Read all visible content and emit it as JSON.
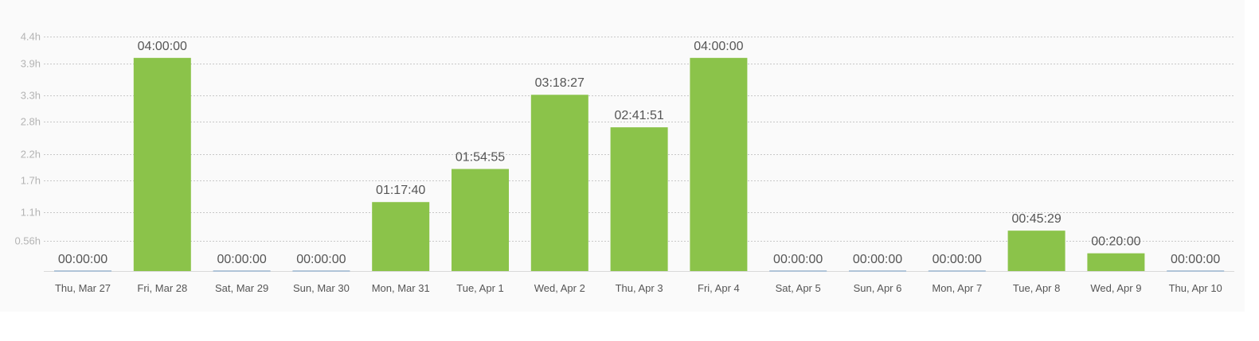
{
  "colors": {
    "bar": "#8bc34a",
    "zero_bar": "#b0c4d8",
    "grid": "#c8c8c8",
    "baseline": "#d9d9d9",
    "tick_text": "#555555",
    "y_tick_text": "#b4b4b4"
  },
  "chart_data": {
    "type": "bar",
    "title": "",
    "xlabel": "",
    "ylabel": "",
    "ylim": [
      0,
      4.4
    ],
    "grid": true,
    "legend": "none",
    "y_ticks": [
      0.56,
      1.1,
      1.7,
      2.2,
      2.8,
      3.3,
      3.9,
      4.4
    ],
    "y_tick_labels": [
      "0.56h",
      "1.1h",
      "1.7h",
      "2.2h",
      "2.8h",
      "3.3h",
      "3.9h",
      "4.4h"
    ],
    "categories": [
      "Thu, Mar 27",
      "Fri, Mar 28",
      "Sat, Mar 29",
      "Sun, Mar 30",
      "Mon, Mar 31",
      "Tue, Apr 1",
      "Wed, Apr 2",
      "Thu, Apr 3",
      "Fri, Apr 4",
      "Sat, Apr 5",
      "Sun, Apr 6",
      "Mon, Apr 7",
      "Tue, Apr 8",
      "Wed, Apr 9",
      "Thu, Apr 10"
    ],
    "values": [
      0,
      4.0,
      0,
      0,
      1.2944,
      1.9153,
      3.3075,
      2.6975,
      4.0,
      0,
      0,
      0,
      0.7581,
      0.3333,
      0
    ],
    "data_labels": [
      "00:00:00",
      "04:00:00",
      "00:00:00",
      "00:00:00",
      "01:17:40",
      "01:54:55",
      "03:18:27",
      "02:41:51",
      "04:00:00",
      "00:00:00",
      "00:00:00",
      "00:00:00",
      "00:45:29",
      "00:20:00",
      "00:00:00"
    ]
  }
}
